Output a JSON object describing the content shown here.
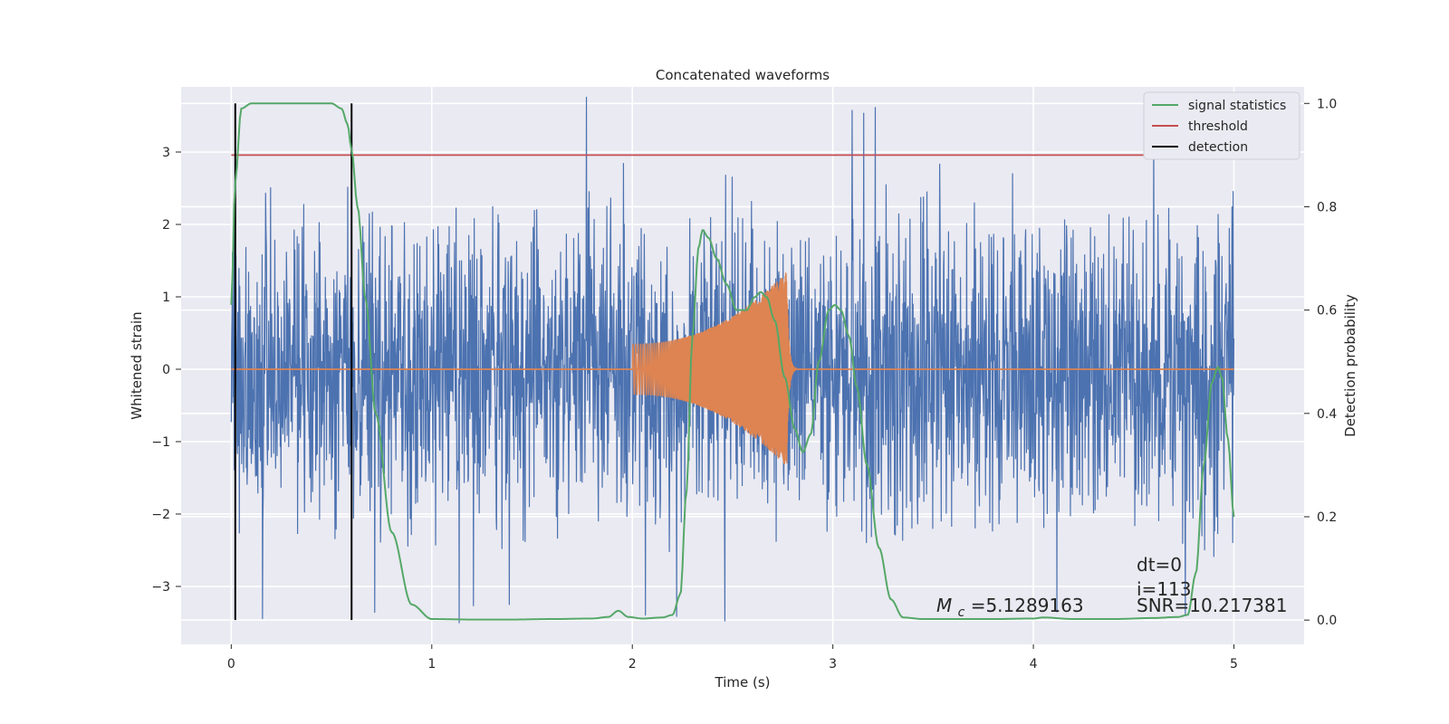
{
  "chart_data": {
    "type": "line",
    "title": "Concatenated waveforms",
    "xlabel": "Time (s)",
    "ylabel_left": "Whitened strain",
    "ylabel_right": "Detection probability",
    "xlim": [
      -0.25,
      5.35
    ],
    "left_ylim": [
      -3.8,
      3.9
    ],
    "right_ylim": [
      -0.047,
      1.032
    ],
    "grid": true,
    "legend_position": "top-right",
    "x_ticks": [
      0,
      1,
      2,
      3,
      4,
      5
    ],
    "left_ticks": [
      -3,
      -2,
      -1,
      0,
      1,
      2,
      3
    ],
    "right_ticks": [
      0.0,
      0.2,
      0.4,
      0.6,
      0.8,
      1.0
    ],
    "x_tick_labels": [
      "0",
      "1",
      "2",
      "3",
      "4",
      "5"
    ],
    "left_tick_labels": [
      "−3",
      "−2",
      "−1",
      "0",
      "1",
      "2",
      "3"
    ],
    "right_tick_labels": [
      "0.0",
      "0.2",
      "0.4",
      "0.6",
      "0.8",
      "1.0"
    ],
    "colors": {
      "background": "#eaeaf2",
      "grid": "#ffffff",
      "strain": "#4c72b0",
      "template": "#dd8452",
      "signal_statistics": "#55a868",
      "threshold": "#c44e52",
      "detection": "#000000"
    },
    "series": [
      {
        "name": "signal statistics",
        "axis": "right",
        "x": [
          0.0,
          0.02,
          0.05,
          0.1,
          0.2,
          0.3,
          0.4,
          0.5,
          0.55,
          0.58,
          0.6,
          0.63,
          0.67,
          0.72,
          0.8,
          0.9,
          1.0,
          1.2,
          1.4,
          1.6,
          1.8,
          1.88,
          1.93,
          1.98,
          2.05,
          2.15,
          2.2,
          2.24,
          2.27,
          2.3,
          2.33,
          2.35,
          2.38,
          2.42,
          2.47,
          2.52,
          2.57,
          2.61,
          2.64,
          2.67,
          2.71,
          2.76,
          2.81,
          2.85,
          2.89,
          2.93,
          2.98,
          3.01,
          3.04,
          3.08,
          3.12,
          3.17,
          3.23,
          3.29,
          3.35,
          3.45,
          3.6,
          3.8,
          4.0,
          4.05,
          4.2,
          4.4,
          4.6,
          4.72,
          4.77,
          4.81,
          4.85,
          4.89,
          4.92,
          4.94,
          4.97,
          5.0
        ],
        "values": [
          0.61,
          0.85,
          0.99,
          1.0,
          1.0,
          1.0,
          1.0,
          1.0,
          0.99,
          0.96,
          0.91,
          0.8,
          0.62,
          0.4,
          0.17,
          0.03,
          0.002,
          0.001,
          0.001,
          0.002,
          0.003,
          0.006,
          0.018,
          0.006,
          0.003,
          0.005,
          0.01,
          0.05,
          0.25,
          0.55,
          0.72,
          0.755,
          0.74,
          0.7,
          0.65,
          0.6,
          0.6,
          0.625,
          0.635,
          0.625,
          0.58,
          0.47,
          0.37,
          0.325,
          0.36,
          0.5,
          0.6,
          0.61,
          0.6,
          0.55,
          0.45,
          0.3,
          0.14,
          0.04,
          0.005,
          0.002,
          0.002,
          0.002,
          0.003,
          0.005,
          0.002,
          0.002,
          0.004,
          0.006,
          0.01,
          0.09,
          0.3,
          0.46,
          0.49,
          0.47,
          0.35,
          0.2
        ]
      },
      {
        "name": "threshold",
        "axis": "right",
        "x": [
          0.0,
          5.1
        ],
        "values": [
          0.9,
          0.9
        ]
      },
      {
        "name": "detection",
        "axis": "right",
        "type": "vline",
        "x": [
          0.02,
          0.6
        ],
        "y_range": [
          0.0,
          1.0
        ]
      },
      {
        "axis": "left",
        "type": "noise",
        "x_range": [
          0.0,
          5.0
        ],
        "typical_abs_max": 2.1,
        "peak_values": [
          3.6,
          -3.3,
          3.4,
          -3.4
        ]
      },
      {
        "axis": "left",
        "type": "chirp",
        "x_range": [
          2.0,
          2.78
        ],
        "start_amplitude": 0.35,
        "peak_amplitude": 1.35,
        "peak_time": 2.77,
        "ringdown_until": 2.82,
        "baseline_x": [
          0.0,
          5.0
        ],
        "baseline_value": 0.0
      }
    ],
    "legend": [
      "signal statistics",
      "threshold",
      "detection"
    ],
    "annotations": {
      "dt_text": "dt=0",
      "i_text": "i=113",
      "snr_text": "SNR=10.217381",
      "mc_symbol": "M",
      "mc_subscript": "c",
      "mc_value_text": "=5.1289163"
    }
  }
}
